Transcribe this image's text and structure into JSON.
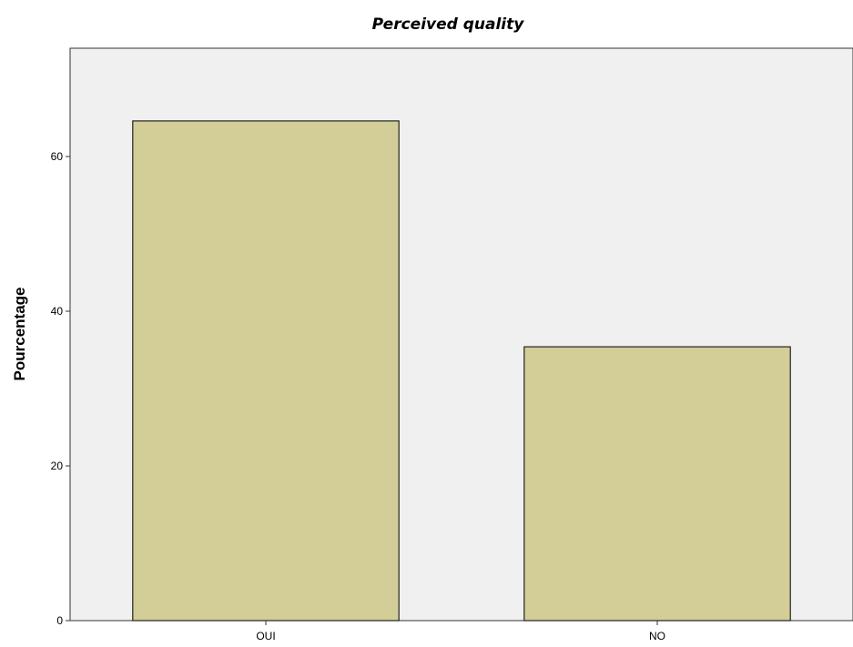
{
  "chart_data": {
    "type": "bar",
    "title": "Perceived quality",
    "xlabel": "",
    "ylabel": "Pourcentage",
    "categories": [
      "OUI",
      "NO"
    ],
    "values": [
      64.6,
      35.4
    ],
    "ylim": [
      0,
      74
    ],
    "yticks": [
      0,
      20,
      40,
      60
    ],
    "grid": false,
    "colors": {
      "bar_fill": "#d3cd97",
      "bar_stroke": "#222222",
      "plot_background": "#f0f0f0",
      "page_background": "#ffffff"
    }
  }
}
